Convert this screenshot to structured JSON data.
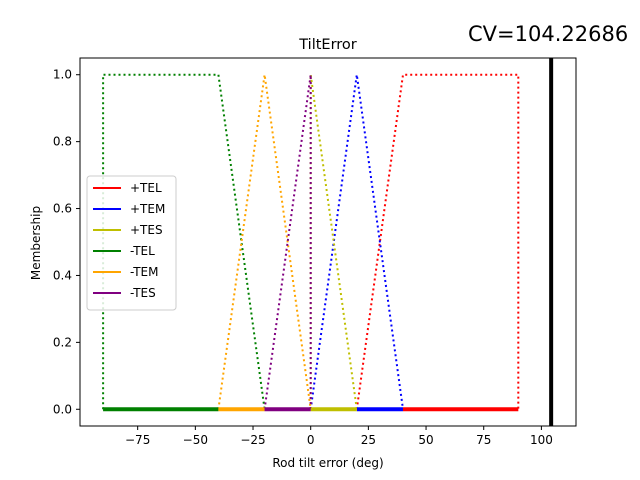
{
  "chart_data": {
    "type": "line",
    "title": "TiltError",
    "annotation": "CV=104.22686",
    "xlabel": "Rod tilt error (deg)",
    "ylabel": "Membership",
    "xlim": [
      -100,
      115
    ],
    "ylim": [
      -0.05,
      1.05
    ],
    "xticks": [
      -75,
      -50,
      -25,
      0,
      25,
      50,
      75,
      100
    ],
    "xtick_labels": [
      "−75",
      "−50",
      "−25",
      "0",
      "25",
      "50",
      "75",
      "100"
    ],
    "yticks": [
      0.0,
      0.2,
      0.4,
      0.6,
      0.8,
      1.0
    ],
    "ytick_labels": [
      "0.0",
      "0.2",
      "0.4",
      "0.6",
      "0.8",
      "1.0"
    ],
    "grid": false,
    "legend_position": "center-left",
    "crisp_value": 104.22686,
    "series": [
      {
        "name": "+TEL",
        "color": "#ff0000",
        "x": [
          40,
          90
        ],
        "trapezoid": [
          20,
          40,
          90,
          90
        ]
      },
      {
        "name": "+TEM",
        "color": "#0000ff",
        "x": [
          20,
          40
        ],
        "trapezoid": [
          0,
          20,
          20,
          40
        ]
      },
      {
        "name": "+TES",
        "color": "#bfbf00",
        "x": [
          0,
          20
        ],
        "trapezoid": [
          0,
          0,
          0,
          20
        ]
      },
      {
        "name": "-TEL",
        "color": "#008000",
        "x": [
          -90,
          -40
        ],
        "trapezoid": [
          -90,
          -90,
          -40,
          -20
        ]
      },
      {
        "name": "-TEM",
        "color": "#ffa500",
        "x": [
          -40,
          -20
        ],
        "trapezoid": [
          -40,
          -20,
          -20,
          0
        ]
      },
      {
        "name": "-TES",
        "color": "#800080",
        "x": [
          -20,
          0
        ],
        "trapezoid": [
          -20,
          0,
          0,
          0
        ]
      }
    ]
  }
}
